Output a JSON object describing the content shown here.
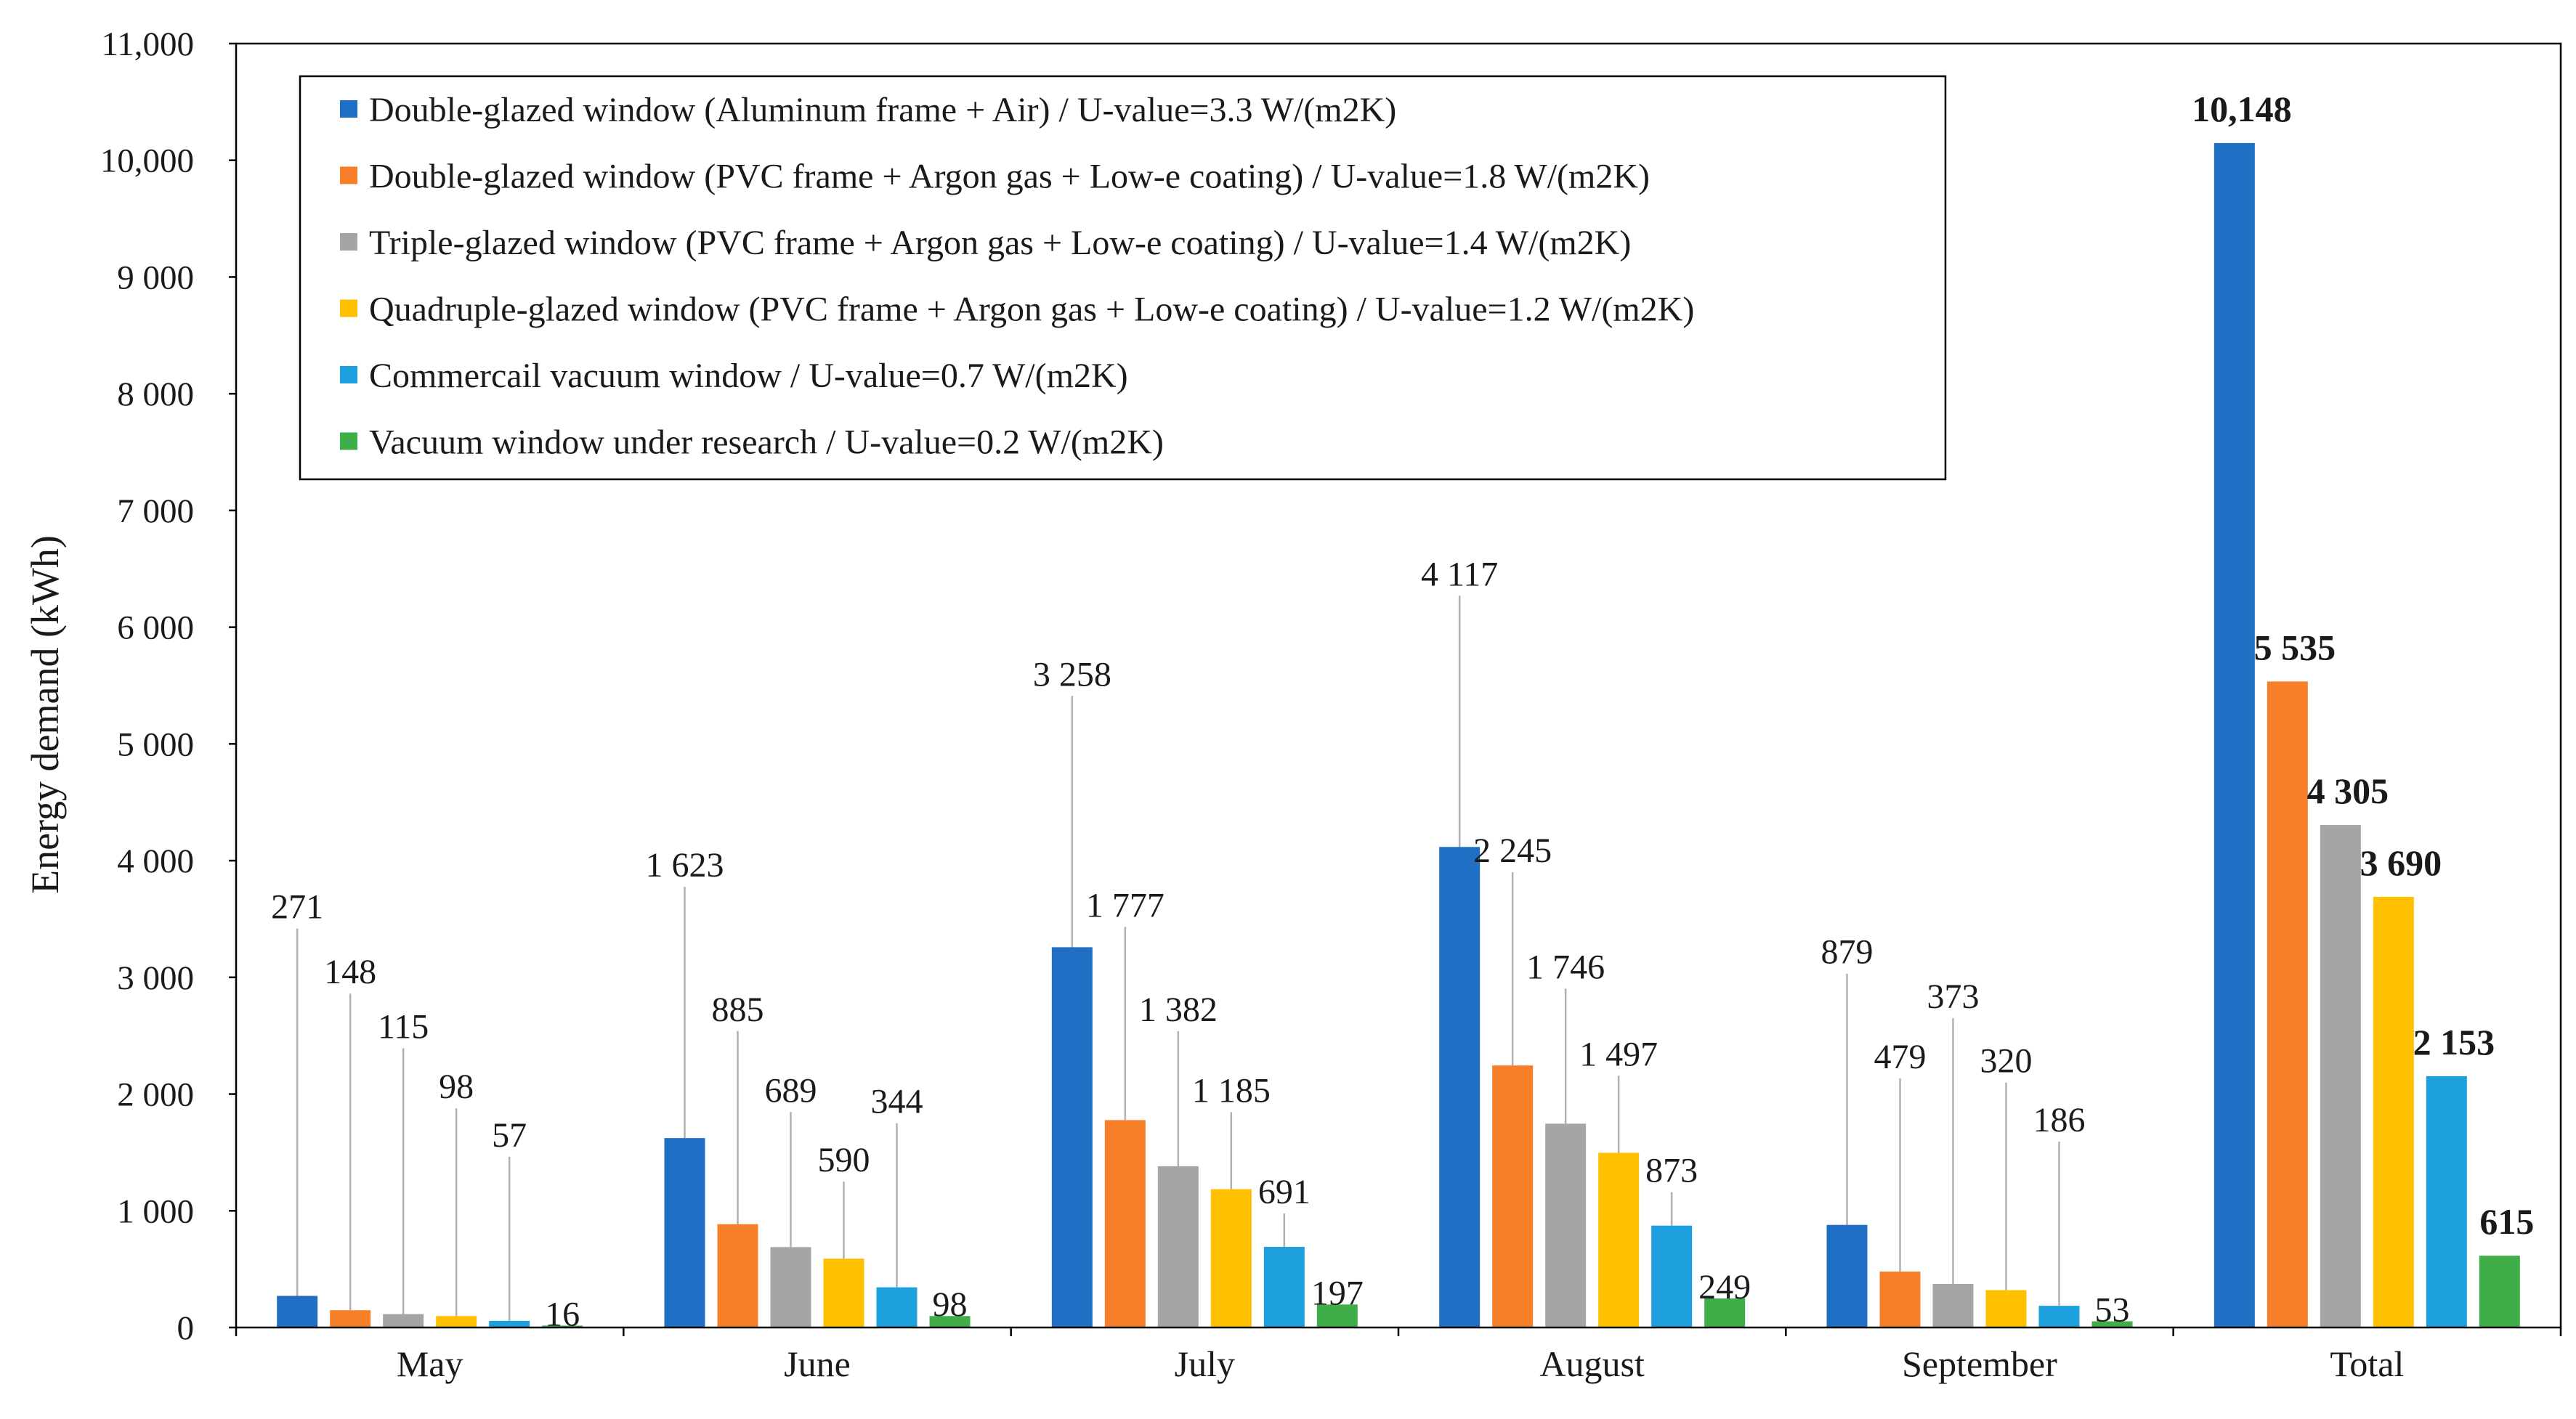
{
  "chart_data": {
    "type": "bar",
    "title": "",
    "xlabel": "",
    "ylabel": "Energy demand (kWh)",
    "ylim": [
      0,
      11000
    ],
    "yticks": [
      0,
      1000,
      2000,
      3000,
      4000,
      5000,
      6000,
      7000,
      8000,
      9000,
      10000,
      11000
    ],
    "ytick_labels": [
      "0",
      "1 000",
      "2 000",
      "3 000",
      "4 000",
      "5 000",
      "6 000",
      "7 000",
      "8 000",
      "9 000",
      "10,000",
      "11,000"
    ],
    "categories": [
      "May",
      "June",
      "July",
      "August",
      "September",
      "Total"
    ],
    "legend_position": "top-left",
    "series": [
      {
        "name": "Double-glazed window (Aluminum frame + Air) / U-value=3.3 W/(m2K)",
        "color": "#1f6fc5",
        "values": [
          271,
          1623,
          3258,
          4117,
          879,
          10148
        ],
        "labels": [
          "271",
          "1 623",
          "3 258",
          "4 117",
          "879",
          "10,148"
        ]
      },
      {
        "name": "Double-glazed window (PVC frame + Argon gas + Low-e coating)  / U-value=1.8 W/(m2K)",
        "color": "#f77f2a",
        "values": [
          148,
          885,
          1777,
          2245,
          479,
          5535
        ],
        "labels": [
          "148",
          "885",
          "1 777",
          "2 245",
          "479",
          "5 535"
        ]
      },
      {
        "name": "Triple-glazed window (PVC frame + Argon gas + Low-e coating) / U-value=1.4 W/(m2K)",
        "color": "#a5a5a5",
        "values": [
          115,
          689,
          1382,
          1746,
          373,
          4305
        ],
        "labels": [
          "115",
          "689",
          "1 382",
          "1 746",
          "373",
          "4 305"
        ]
      },
      {
        "name": "Quadruple-glazed window (PVC frame + Argon gas + Low-e coating)  / U-value=1.2 W/(m2K)",
        "color": "#ffc000",
        "values": [
          98,
          590,
          1185,
          1497,
          320,
          3690
        ],
        "labels": [
          "98",
          "590",
          "1 185",
          "1 497",
          "320",
          "3 690"
        ]
      },
      {
        "name": "Commercail vacuum window / U-value=0.7 W/(m2K)",
        "color": "#1fa0de",
        "values": [
          57,
          344,
          691,
          873,
          186,
          2153
        ],
        "labels": [
          "57",
          "344",
          "691",
          "873",
          "186",
          "2 153"
        ]
      },
      {
        "name": "Vacuum window under research  / U-value=0.2 W/(m2K)",
        "color": "#3fae49",
        "values": [
          16,
          98,
          197,
          249,
          53,
          615
        ],
        "labels": [
          "16",
          "98",
          "197",
          "249",
          "53",
          "615"
        ]
      }
    ]
  }
}
